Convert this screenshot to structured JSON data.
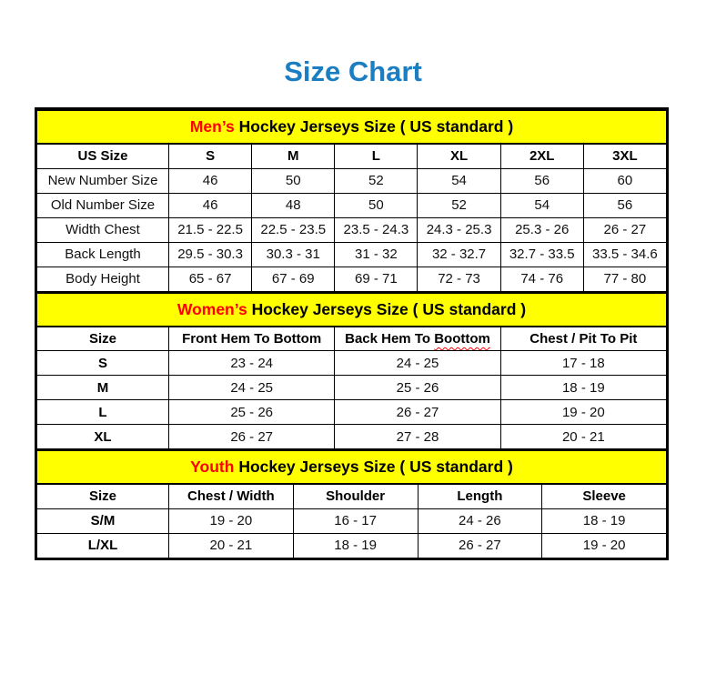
{
  "page": {
    "title": "Size Chart"
  },
  "colors": {
    "title_blue": "#1b7ec2",
    "band_yellow": "#ffff00",
    "accent_red": "#ff0000",
    "border_black": "#000000",
    "text_black": "#111111"
  },
  "men": {
    "band": {
      "highlight": "Men’s",
      "rest": "Hockey Jerseys Size ( US standard )"
    },
    "columns": [
      "US Size",
      "S",
      "M",
      "L",
      "XL",
      "2XL",
      "3XL"
    ],
    "rows": [
      {
        "label": "New Number Size",
        "values": [
          "46",
          "50",
          "52",
          "54",
          "56",
          "60"
        ]
      },
      {
        "label": "Old Number Size",
        "values": [
          "46",
          "48",
          "50",
          "52",
          "54",
          "56"
        ]
      },
      {
        "label": "Width Chest",
        "values": [
          "21.5 - 22.5",
          "22.5 - 23.5",
          "23.5 - 24.3",
          "24.3 - 25.3",
          "25.3 - 26",
          "26 - 27"
        ]
      },
      {
        "label": "Back Length",
        "values": [
          "29.5 - 30.3",
          "30.3 - 31",
          "31 - 32",
          "32 - 32.7",
          "32.7 - 33.5",
          "33.5 - 34.6"
        ]
      },
      {
        "label": "Body Height",
        "values": [
          "65 - 67",
          "67 - 69",
          "69 - 71",
          "72 - 73",
          "74 - 76",
          "77 - 80"
        ]
      }
    ]
  },
  "women": {
    "band": {
      "highlight": "Women’s",
      "rest": "Hockey Jerseys Size ( US standard )"
    },
    "columns": {
      "size": "Size",
      "front": "Front Hem To Bottom",
      "back_prefix": "Back Hem To",
      "back_misspelled": "Boottom",
      "chest": "Chest / Pit To Pit"
    },
    "rows": [
      {
        "label": "S",
        "values": [
          "23 - 24",
          "24 - 25",
          "17 - 18"
        ]
      },
      {
        "label": "M",
        "values": [
          "24 - 25",
          "25 - 26",
          "18 - 19"
        ]
      },
      {
        "label": "L",
        "values": [
          "25 - 26",
          "26 - 27",
          "19 - 20"
        ]
      },
      {
        "label": "XL",
        "values": [
          "26 - 27",
          "27 - 28",
          "20 - 21"
        ]
      }
    ]
  },
  "youth": {
    "band": {
      "highlight": "Youth",
      "rest": "Hockey Jerseys Size ( US standard )"
    },
    "columns": [
      "Size",
      "Chest / Width",
      "Shoulder",
      "Length",
      "Sleeve"
    ],
    "rows": [
      {
        "label": "S/M",
        "values": [
          "19 - 20",
          "16 - 17",
          "24 - 26",
          "18 - 19"
        ]
      },
      {
        "label": "L/XL",
        "values": [
          "20 - 21",
          "18 - 19",
          "26 - 27",
          "19 - 20"
        ]
      }
    ]
  }
}
